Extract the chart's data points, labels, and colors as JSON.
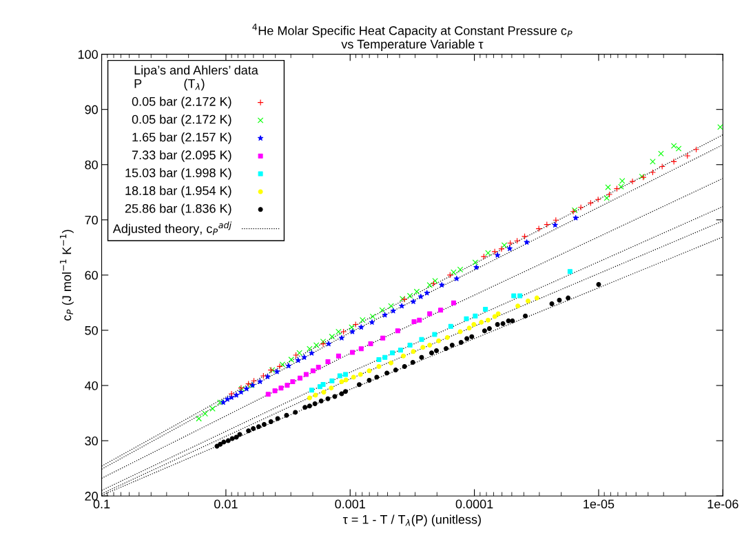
{
  "chart_data": {
    "type": "scatter",
    "title": "$^{4}$He Molar Specific Heat Capacity at Constant Pressure c$_{P}$\nvs Temperature Variable τ",
    "xlabel": "τ = 1 - T / T$_{λ}$(P) (unitless)",
    "ylabel": "c$_{P}$ (J mol$^{−1}$ K$^{−1}$)",
    "legend_title": "Lipa’s and Ahlers’ data\nP            (T$_{λ}$)",
    "log": "x",
    "xlim": [
      0.1,
      1e-06
    ],
    "xticks": [
      0.1,
      0.01,
      0.001,
      0.0001,
      1e-05,
      1e-06
    ],
    "ylim": [
      20,
      100
    ],
    "yticks": [
      20,
      30,
      40,
      50,
      60,
      70,
      80,
      90,
      100
    ],
    "grid": false,
    "legend": "top left",
    "series": [
      {
        "name": "0.05 bar (2.172 K)",
        "color": "#ff0000",
        "marker": "plus",
        "x": [
          0.00901,
          0.00755,
          0.00658,
          0.00595,
          0.00499,
          0.00434,
          0.00369,
          0.00273,
          0.00165,
          0.00113,
          0.000903,
          0.000366,
          0.000213,
          0.000157,
          8.39e-05,
          6.86e-05,
          6.05e-05,
          5.14e-05,
          4.53e-05,
          3.94e-05,
          3.03e-05,
          2.61e-05,
          2.21e-05,
          1.6e-05,
          1.39e-05,
          1.16e-05,
          1.01e-05,
          8.19e-06,
          7.13e-06,
          5.34e-06,
          4.37e-06,
          3.67e-06,
          3.08e-06,
          2.48e-06,
          1.93e-06,
          1.64e-06
        ],
        "values": [
          38.5,
          39.55,
          40.3,
          40.85,
          41.75,
          42.8,
          43.45,
          45.5,
          47.55,
          49.75,
          51.05,
          55.6,
          58.45,
          60.0,
          63.35,
          64.25,
          64.75,
          65.8,
          66.2,
          67.0,
          68.4,
          69.15,
          69.95,
          71.5,
          72.25,
          73.05,
          73.7,
          74.6,
          75.65,
          76.95,
          77.7,
          78.6,
          79.65,
          80.55,
          81.6,
          82.75
        ]
      },
      {
        "name": "0.05 bar (2.172 K)",
        "color": "#00ff00",
        "marker": "cross",
        "x": [
          0.0165,
          0.0147,
          0.0128,
          0.01114,
          0.00746,
          0.00631,
          0.00424,
          0.00351,
          0.00298,
          0.00256,
          0.00212,
          0.00187,
          0.00165,
          0.0014,
          0.00124,
          0.000972,
          0.000794,
          0.000658,
          0.000552,
          0.000469,
          0.000379,
          0.00033,
          0.000291,
          0.000229,
          0.000207,
          0.000147,
          0.00013,
          9.84e-05,
          7.76e-05,
          5.74e-05,
          1.56e-05,
          8.6e-06,
          8.4e-06,
          6.6e-06,
          6.46e-06,
          4.48e-06,
          3.67e-06,
          3.15e-06,
          2.48e-06,
          2.27e-06,
          1.05e-06
        ],
        "values": [
          34.0,
          34.9,
          35.8,
          36.95,
          39.4,
          40.05,
          42.8,
          43.8,
          44.7,
          45.9,
          46.65,
          47.3,
          47.95,
          48.85,
          49.75,
          50.55,
          51.85,
          52.5,
          53.65,
          54.4,
          55.7,
          56.25,
          57.0,
          58.2,
          58.95,
          60.5,
          61.0,
          62.3,
          64.0,
          65.4,
          71.75,
          73.95,
          75.9,
          76.0,
          77.05,
          77.85,
          80.55,
          82.0,
          83.4,
          82.9,
          86.8
        ]
      },
      {
        "name": "1.65 bar (2.157 K)",
        "color": "#0000ff",
        "marker": "star",
        "x": [
          0.0105,
          0.00972,
          0.00901,
          0.00824,
          0.00755,
          0.00682,
          0.0061,
          0.00531,
          0.00462,
          0.00388,
          0.00313,
          0.00262,
          0.00234,
          0.00204,
          0.00149,
          0.00117,
          0.000959,
          0.000815,
          0.000667,
          0.000525,
          0.00045,
          0.000384,
          0.00031,
          0.00027,
          0.000241,
          0.000183,
          0.000139,
          9.64e-05,
          6.52e-05,
          5.2e-05,
          3.79e-05,
          2.24e-05,
          1.53e-05
        ],
        "values": [
          36.95,
          37.5,
          37.85,
          38.25,
          38.8,
          39.4,
          40.05,
          40.7,
          41.6,
          42.5,
          43.55,
          44.55,
          45.1,
          45.85,
          47.55,
          48.6,
          49.75,
          50.55,
          51.45,
          52.75,
          53.5,
          54.4,
          55.2,
          56.1,
          56.75,
          58.2,
          59.35,
          61.4,
          63.6,
          64.8,
          65.95,
          69.05,
          70.35
        ]
      },
      {
        "name": "7.33 bar (2.095 K)",
        "color": "#ff00ff",
        "marker": "square",
        "x": [
          0.00457,
          0.00403,
          0.0036,
          0.00321,
          0.0029,
          0.00253,
          0.00226,
          0.00199,
          0.0018,
          0.00151,
          0.00124,
          0.000959,
          0.000815,
          0.000684,
          0.000546,
          0.000414,
          0.000306,
          0.000277,
          0.000229,
          0.000187,
          0.000147
        ],
        "values": [
          38.4,
          39.05,
          39.55,
          40.05,
          40.7,
          41.35,
          42.0,
          42.65,
          43.3,
          44.3,
          45.35,
          46.0,
          46.65,
          47.55,
          48.6,
          49.9,
          51.55,
          51.85,
          53.0,
          53.65,
          54.95
        ]
      },
      {
        "name": "15.03 bar (1.998 K)",
        "color": "#00ffff",
        "marker": "square",
        "x": [
          0.00204,
          0.00175,
          0.00165,
          0.0014,
          0.00121,
          0.00109,
          0.000587,
          0.000525,
          0.000457,
          0.000393,
          0.00033,
          0.000266,
          0.000209,
          0.000155,
          0.000116,
          9.84e-05,
          8.15e-05,
          4.82e-05,
          4.3e-05,
          1.7e-05
        ],
        "values": [
          39.15,
          39.8,
          40.2,
          40.85,
          41.75,
          42.0,
          44.7,
          45.1,
          45.9,
          46.4,
          47.3,
          48.35,
          49.25,
          50.7,
          52.1,
          52.6,
          53.8,
          56.25,
          56.25,
          60.65
        ]
      },
      {
        "name": "18.18 bar (1.954 K)",
        "color": "#ffff00",
        "marker": "circle",
        "x": [
          0.00212,
          0.0019,
          0.00163,
          0.00142,
          0.00117,
          0.00108,
          0.000938,
          0.000826,
          0.000702,
          0.000587,
          0.000469,
          0.000373,
          0.00031,
          0.00026,
          0.000229,
          0.000194,
          0.000165,
          0.00013,
          0.00011,
          0.000101,
          8.79e-05,
          7.76e-05,
          6.85e-05,
          6.43e-05,
          4.47e-05,
          3.7e-05,
          3.14e-05
        ],
        "values": [
          37.75,
          38.25,
          38.8,
          39.55,
          40.7,
          41.0,
          41.5,
          42.0,
          42.65,
          43.45,
          44.1,
          45.35,
          46.15,
          46.9,
          47.3,
          48.1,
          48.7,
          49.75,
          50.4,
          51.05,
          51.45,
          51.85,
          52.5,
          53.0,
          54.4,
          55.3,
          55.85
        ]
      },
      {
        "name": "25.86 bar (1.836 K)",
        "color": "#000000",
        "marker": "circle",
        "x": [
          0.0118,
          0.0111,
          0.0104,
          0.00958,
          0.00889,
          0.00824,
          0.00774,
          0.00658,
          0.00602,
          0.00545,
          0.00492,
          0.00434,
          0.00383,
          0.00325,
          0.00276,
          0.00231,
          0.00212,
          0.00192,
          0.00171,
          0.00151,
          0.00133,
          0.00117,
          0.00109,
          0.000845,
          0.000702,
          0.000611,
          0.000506,
          0.00043,
          0.000365,
          0.000313,
          0.000266,
          0.000221,
          0.000202,
          0.000169,
          0.000151,
          0.000128,
          0.000115,
          0.000105,
          8.28e-05,
          7.57e-05,
          6.52e-05,
          5.89e-05,
          5.32e-05,
          4.94e-05,
          3.89e-05,
          2.38e-05,
          2.07e-05,
          1.76e-05,
          1e-05
        ],
        "values": [
          29.0,
          29.35,
          29.75,
          30.0,
          30.4,
          30.65,
          31.15,
          31.8,
          32.2,
          32.55,
          32.95,
          33.45,
          34.0,
          34.6,
          35.15,
          36.05,
          36.3,
          36.7,
          37.2,
          37.6,
          38.0,
          38.5,
          38.9,
          40.15,
          40.95,
          41.5,
          42.25,
          42.8,
          43.45,
          44.2,
          45.1,
          45.9,
          46.3,
          46.7,
          47.3,
          47.8,
          48.5,
          48.85,
          49.9,
          50.3,
          51.05,
          51.2,
          51.7,
          51.7,
          52.6,
          54.8,
          55.45,
          55.85,
          58.3
        ]
      },
      {
        "name": "Adjusted theory, c$_{P}$$^{adj}$",
        "type": "line",
        "color": "#000000",
        "line_style": "dotted",
        "marker": "none",
        "x": [
          0.1,
          0.001,
          1e-06
        ],
        "values": [
          25.4,
          50.4,
          85.4
        ]
      },
      {
        "type": "line",
        "color": "#000000",
        "line_style": "dotted",
        "marker": "none",
        "x": [
          0.1,
          0.001,
          1e-06
        ],
        "values": [
          24.85,
          49.6,
          83.6
        ]
      },
      {
        "type": "line",
        "color": "#000000",
        "line_style": "dotted",
        "marker": "none",
        "x": [
          0.1,
          0.001,
          1e-06
        ],
        "values": [
          23.2,
          45.8,
          77.5
        ]
      },
      {
        "type": "line",
        "color": "#000000",
        "line_style": "dotted",
        "marker": "none",
        "x": [
          0.1,
          0.001,
          1e-06
        ],
        "values": [
          21.0,
          42.4,
          72.4
        ]
      },
      {
        "type": "line",
        "color": "#000000",
        "line_style": "dotted",
        "marker": "none",
        "x": [
          0.1,
          0.001,
          1e-06
        ],
        "values": [
          20.4,
          41.2,
          69.8
        ]
      },
      {
        "type": "line",
        "color": "#000000",
        "line_style": "dotted",
        "marker": "none",
        "x": [
          0.1,
          0.001,
          1e-06
        ],
        "values": [
          20.1,
          39.3,
          66.9
        ]
      }
    ]
  }
}
